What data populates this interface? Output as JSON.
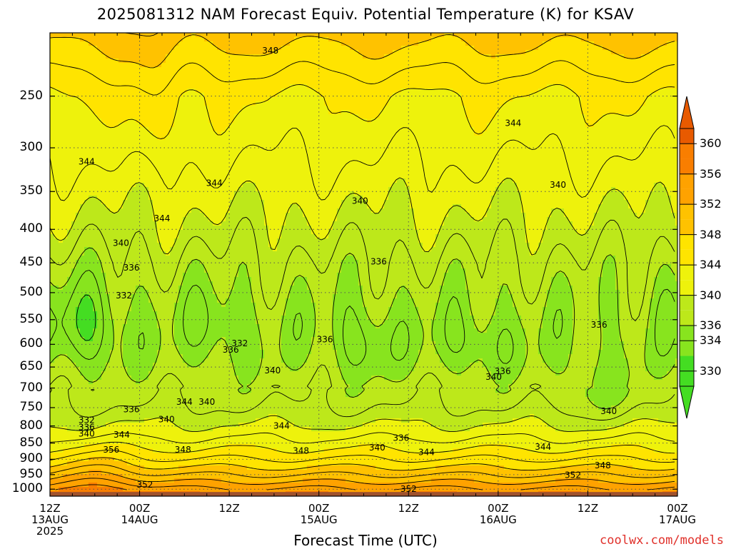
{
  "title": "2025081312 NAM Forecast Equiv. Potential Temperature (K) for KSAV",
  "x_axis_title": "Forecast Time (UTC)",
  "credit": "coolwx.com/models",
  "colors": {
    "c330": "#44dd22",
    "c334": "#88e41e",
    "c336": "#bde81a",
    "c340": "#eef20c",
    "c344": "#ffe400",
    "c348": "#ffc200",
    "c352": "#ffa200",
    "c356": "#f97e00",
    "c360": "#e85a00",
    "ground": "#a0522d",
    "line": "#000000",
    "grid": "#555555"
  },
  "chart_data": {
    "type": "heatmap",
    "title": "2025081312 NAM Forecast Equiv. Potential Temperature (K) for KSAV",
    "xlabel": "Forecast Time (UTC)",
    "ylabel": "",
    "y_scale": "log-pressure (hPa), inverted",
    "ylim": [
      1025,
      200
    ],
    "y_ticks": [
      250,
      300,
      350,
      400,
      450,
      500,
      550,
      600,
      650,
      700,
      750,
      800,
      850,
      900,
      950,
      1000
    ],
    "x_ticks": [
      {
        "line1": "12Z",
        "line2": "13AUG",
        "line3": "2025"
      },
      {
        "line1": "00Z",
        "line2": "14AUG",
        "line3": ""
      },
      {
        "line1": "12Z",
        "line2": "",
        "line3": ""
      },
      {
        "line1": "00Z",
        "line2": "15AUG",
        "line3": ""
      },
      {
        "line1": "12Z",
        "line2": "",
        "line3": ""
      },
      {
        "line1": "00Z",
        "line2": "16AUG",
        "line3": ""
      },
      {
        "line1": "12Z",
        "line2": "",
        "line3": ""
      },
      {
        "line1": "00Z",
        "line2": "17AUG",
        "line3": ""
      }
    ],
    "x_hours": [
      0,
      12,
      24,
      36,
      48,
      60,
      72,
      84
    ],
    "colorbar": {
      "labels": [
        330,
        334,
        336,
        340,
        344,
        348,
        352,
        356,
        360
      ],
      "range": [
        328,
        362
      ],
      "extend": "both"
    },
    "contour_labels": [
      {
        "text": "348",
        "t": 29.5,
        "p": 213
      },
      {
        "text": "344",
        "t": 4.9,
        "p": 315
      },
      {
        "text": "344",
        "t": 22.0,
        "p": 340
      },
      {
        "text": "344",
        "t": 15.0,
        "p": 385
      },
      {
        "text": "344",
        "t": 62.0,
        "p": 275
      },
      {
        "text": "340",
        "t": 9.5,
        "p": 420
      },
      {
        "text": "340",
        "t": 41.5,
        "p": 362
      },
      {
        "text": "340",
        "t": 68.0,
        "p": 342
      },
      {
        "text": "336",
        "t": 10.9,
        "p": 458
      },
      {
        "text": "336",
        "t": 44.0,
        "p": 448
      },
      {
        "text": "336",
        "t": 73.5,
        "p": 560
      },
      {
        "text": "336",
        "t": 36.8,
        "p": 590
      },
      {
        "text": "336",
        "t": 24.2,
        "p": 612
      },
      {
        "text": "336",
        "t": 60.6,
        "p": 660
      },
      {
        "text": "336",
        "t": 10.9,
        "p": 755
      },
      {
        "text": "336",
        "t": 47.0,
        "p": 835
      },
      {
        "text": "336",
        "t": 4.9,
        "p": 804
      },
      {
        "text": "332",
        "t": 9.9,
        "p": 505
      },
      {
        "text": "332",
        "t": 25.4,
        "p": 598
      },
      {
        "text": "332",
        "t": 4.9,
        "p": 784
      },
      {
        "text": "340",
        "t": 29.8,
        "p": 658
      },
      {
        "text": "340",
        "t": 4.9,
        "p": 822
      },
      {
        "text": "340",
        "t": 15.6,
        "p": 782
      },
      {
        "text": "340",
        "t": 21.0,
        "p": 735
      },
      {
        "text": "340",
        "t": 43.8,
        "p": 864
      },
      {
        "text": "340",
        "t": 59.4,
        "p": 673
      },
      {
        "text": "340",
        "t": 74.8,
        "p": 760
      },
      {
        "text": "344",
        "t": 18.0,
        "p": 735
      },
      {
        "text": "344",
        "t": 9.6,
        "p": 825
      },
      {
        "text": "344",
        "t": 31.0,
        "p": 800
      },
      {
        "text": "344",
        "t": 50.4,
        "p": 878
      },
      {
        "text": "344",
        "t": 66.0,
        "p": 862
      },
      {
        "text": "348",
        "t": 17.8,
        "p": 870
      },
      {
        "text": "348",
        "t": 33.6,
        "p": 874
      },
      {
        "text": "348",
        "t": 74.0,
        "p": 920
      },
      {
        "text": "352",
        "t": 12.7,
        "p": 985
      },
      {
        "text": "352",
        "t": 48.0,
        "p": 1000
      },
      {
        "text": "352",
        "t": 70.0,
        "p": 952
      },
      {
        "text": "356",
        "t": 8.2,
        "p": 870
      }
    ]
  }
}
